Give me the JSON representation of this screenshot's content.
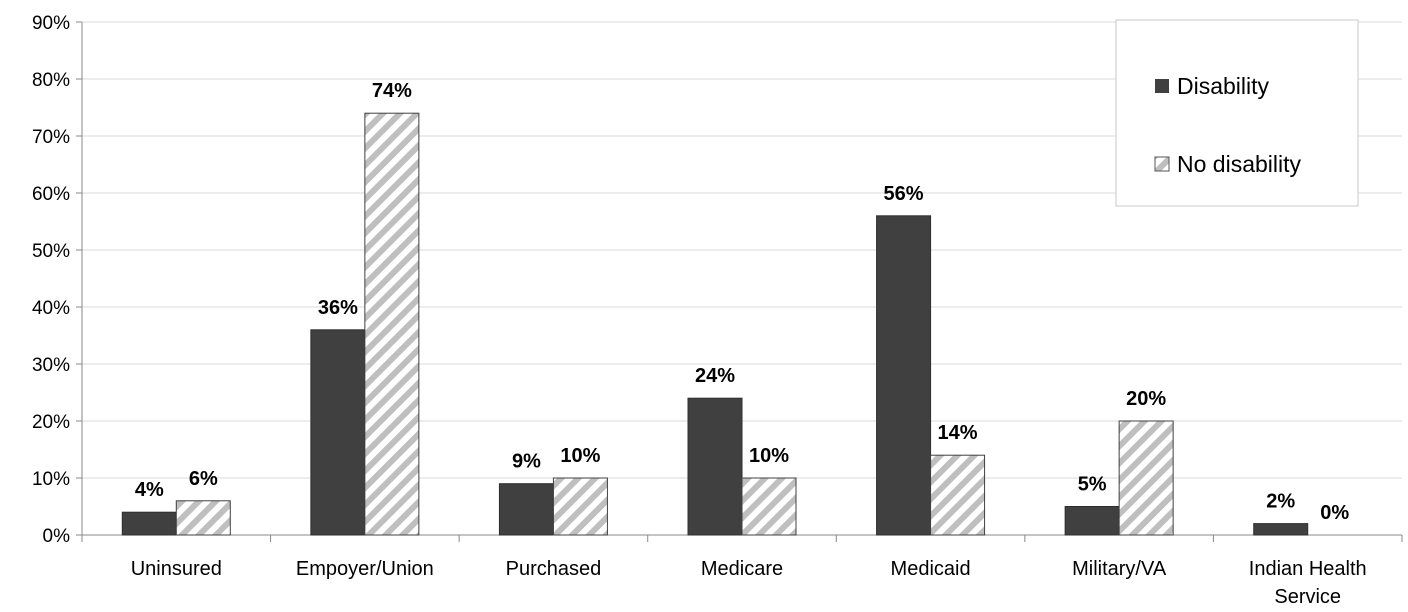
{
  "chart_data": {
    "type": "bar",
    "title": "",
    "xlabel": "",
    "ylabel": "",
    "ylim": [
      0,
      90
    ],
    "yticks": [
      "0%",
      "10%",
      "20%",
      "30%",
      "40%",
      "50%",
      "60%",
      "70%",
      "80%",
      "90%"
    ],
    "grid": true,
    "legend_position": "top-right",
    "categories": [
      "Uninsured",
      "Empoyer/Union",
      "Purchased",
      "Medicare",
      "Medicaid",
      "Military/VA",
      "Indian Health Service"
    ],
    "series": [
      {
        "name": "Disability",
        "values": [
          4,
          36,
          9,
          24,
          56,
          5,
          2
        ],
        "labels": [
          "4%",
          "36%",
          "9%",
          "24%",
          "56%",
          "5%",
          "2%"
        ],
        "color": "#404040",
        "fill": "solid"
      },
      {
        "name": "No disability",
        "values": [
          6,
          74,
          10,
          10,
          14,
          20,
          0
        ],
        "labels": [
          "6%",
          "74%",
          "10%",
          "10%",
          "14%",
          "20%",
          "0%"
        ],
        "color": "#bfbfbf",
        "fill": "hatched"
      }
    ]
  }
}
